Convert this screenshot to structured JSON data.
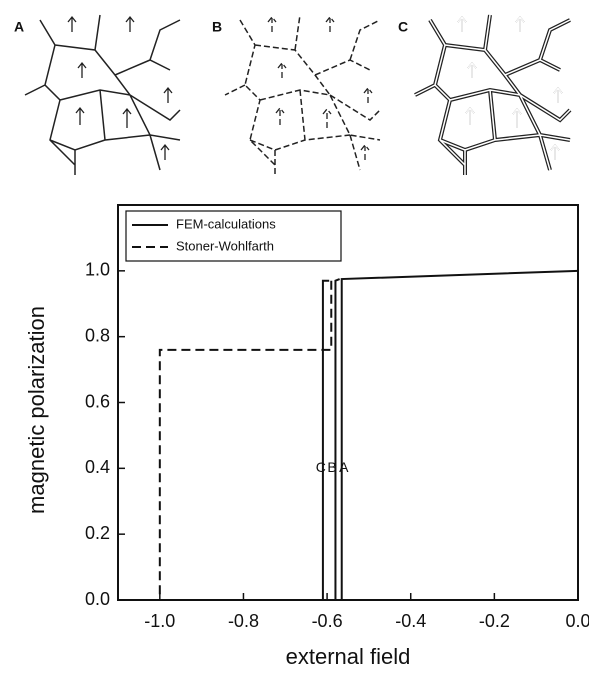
{
  "chart_data": {
    "type": "line",
    "panel_labels": [
      "A",
      "B",
      "C"
    ],
    "xlabel": "external field",
    "ylabel": "magnetic polarization",
    "xlim": [
      -1.1,
      0.0
    ],
    "ylim": [
      0,
      1.2
    ],
    "xticks": [
      {
        "value": -1.0,
        "label": "-1.0"
      },
      -0.8,
      -0.6,
      -0.4,
      -0.2,
      {
        "value": 0.0,
        "label": "0.0"
      }
    ],
    "yticks": [
      {
        "value": 0.0,
        "label": "0.0"
      },
      0.2,
      0.4,
      0.6,
      0.8,
      {
        "value": 1.0,
        "label": "1.0"
      }
    ],
    "legend": "upper left",
    "series": [
      {
        "name": "FEM-calculations",
        "color": "#111111",
        "dash": "solid",
        "lines": [
          {
            "label": "A",
            "x": [
              0.0,
              -0.565,
              -0.565
            ],
            "y": [
              1.0,
              0.975,
              0.0
            ]
          },
          {
            "label": "B",
            "x": [
              -0.57,
              -0.58,
              -0.58
            ],
            "y": [
              0.975,
              0.97,
              0.0
            ]
          },
          {
            "label": "C",
            "x": [
              -0.595,
              -0.61,
              -0.61
            ],
            "y": [
              0.97,
              0.97,
              0.0
            ]
          }
        ]
      },
      {
        "name": "Stoner-Wohlfarth",
        "color": "#111111",
        "dash": "dashed",
        "x": [
          -0.59,
          -0.59,
          -1.0,
          -1.0
        ],
        "y": [
          0.97,
          0.76,
          0.76,
          0.0
        ]
      }
    ],
    "annotations": [
      {
        "text": "C",
        "x": -0.615,
        "y": 0.4
      },
      {
        "text": "B",
        "x": -0.588,
        "y": 0.4
      },
      {
        "text": "A",
        "x": -0.56,
        "y": 0.4
      }
    ]
  }
}
